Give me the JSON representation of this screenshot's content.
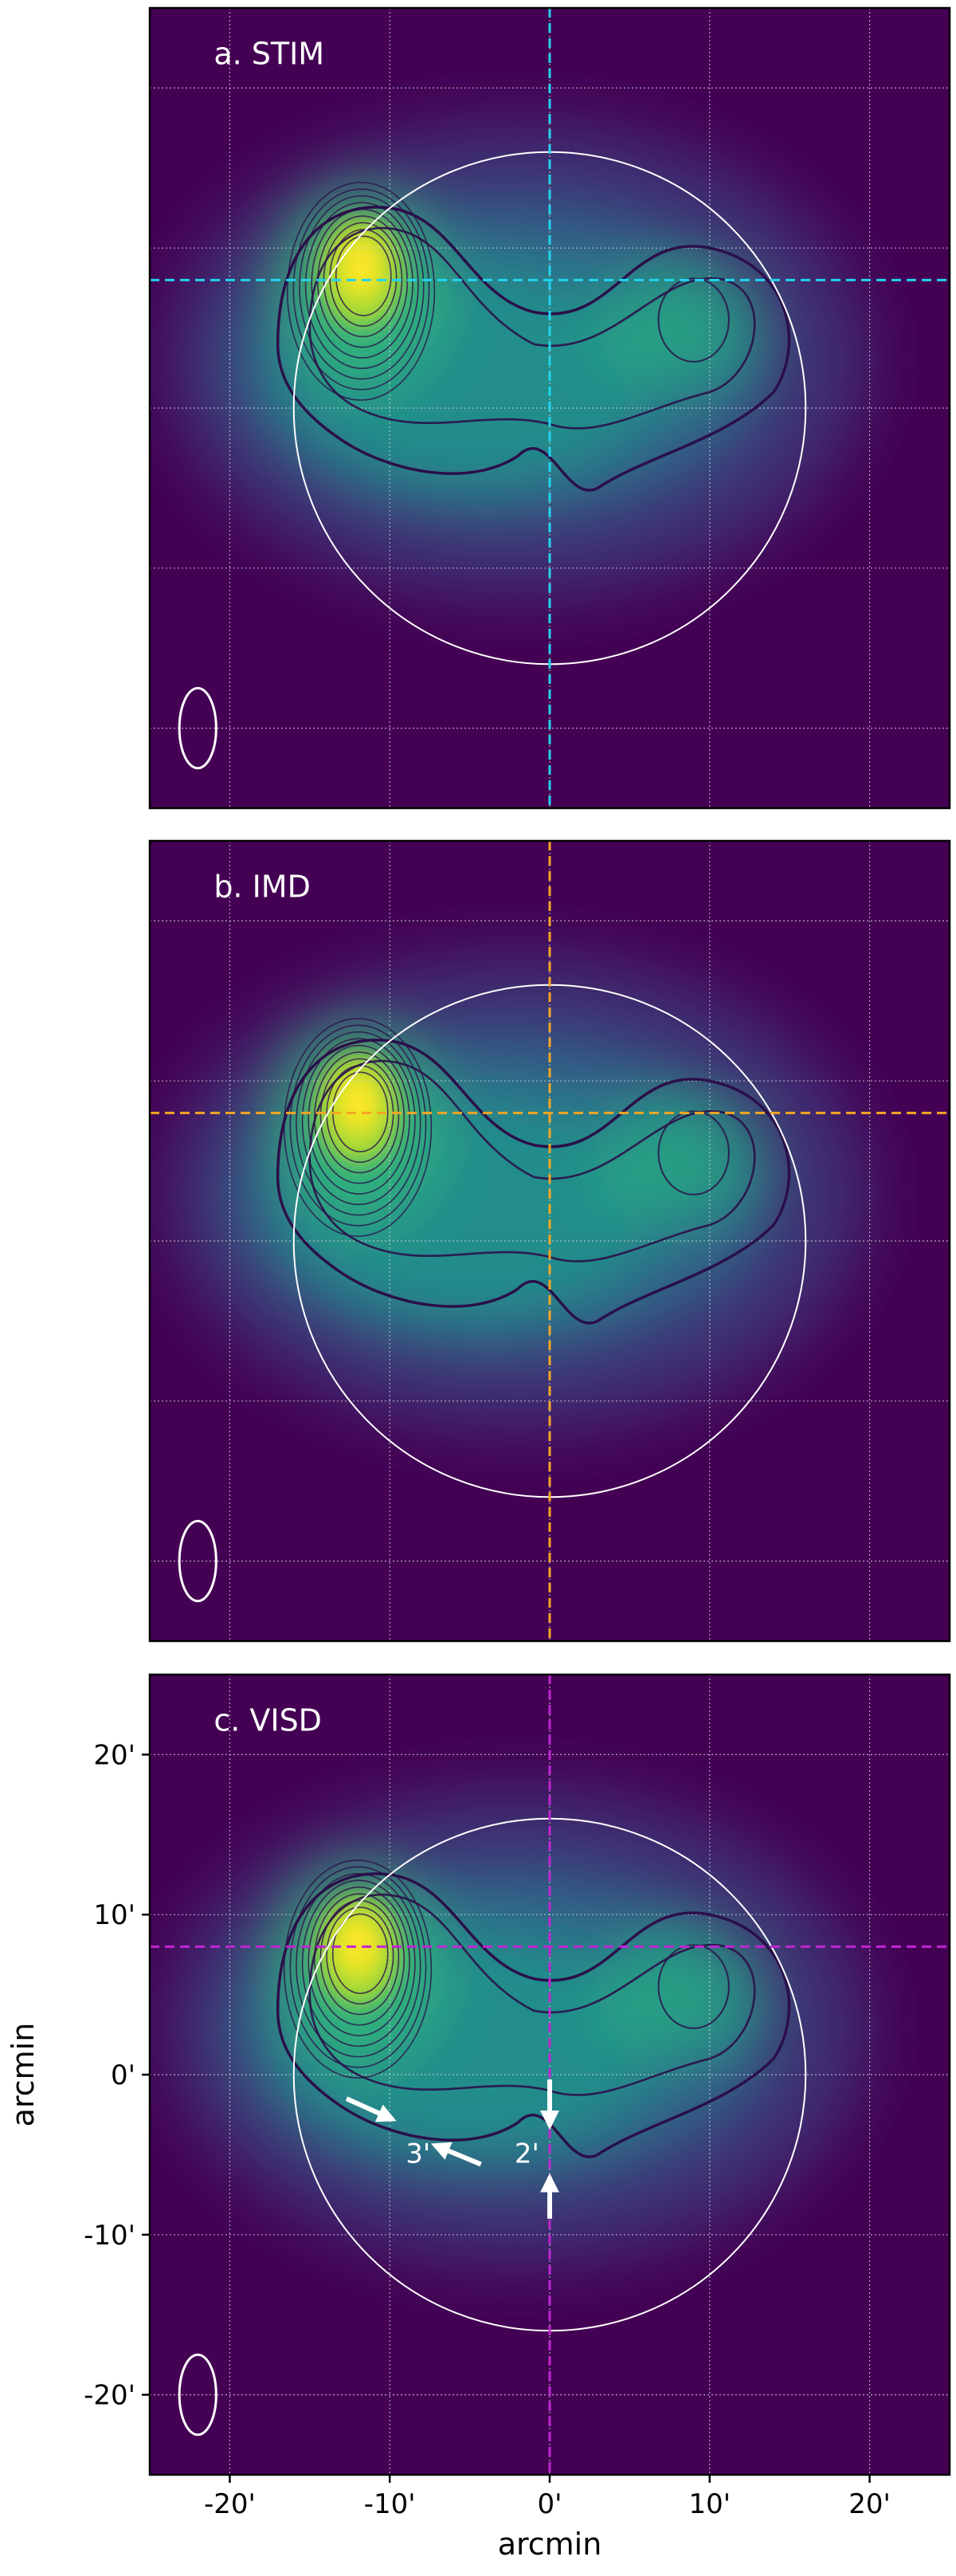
{
  "figure": {
    "colors": {
      "background": "#440154",
      "mid": "#21918c",
      "peak": "#fde725",
      "contour": "#2a0f4a",
      "grid": "#d8d8d8",
      "circle": "#ffffff"
    }
  },
  "chart_data": [
    {
      "type": "heatmap",
      "title": "a. STIM",
      "crosshair_color": "#22d3ee",
      "crosshair": {
        "x": 0,
        "y": 8
      },
      "xlim": [
        -25,
        25
      ],
      "ylim": [
        -25,
        25
      ],
      "grid": true,
      "circle_radius": 16,
      "beam": {
        "x": -22,
        "y": -20,
        "major": 5,
        "minor": 2.5
      },
      "peak": {
        "x": -11.8,
        "y": 8.5
      },
      "tick_labels_visible": false
    },
    {
      "type": "heatmap",
      "title": "b. IMD",
      "crosshair_color": "#f5a623",
      "crosshair": {
        "x": 0,
        "y": 8
      },
      "xlim": [
        -25,
        25
      ],
      "ylim": [
        -25,
        25
      ],
      "grid": true,
      "circle_radius": 16,
      "beam": {
        "x": -22,
        "y": -20,
        "major": 5,
        "minor": 2.5
      },
      "peak": {
        "x": -12,
        "y": 8.3
      },
      "tick_labels_visible": false
    },
    {
      "type": "heatmap",
      "title": "c. VISD",
      "crosshair_color": "#c026d3",
      "crosshair": {
        "x": 0,
        "y": 8
      },
      "xlim": [
        -25,
        25
      ],
      "ylim": [
        -25,
        25
      ],
      "grid": true,
      "circle_radius": 16,
      "beam": {
        "x": -22,
        "y": -20,
        "major": 5,
        "minor": 2.5
      },
      "peak": {
        "x": -12,
        "y": 7.8
      },
      "tick_labels_visible": true,
      "xticks": [
        -20,
        -10,
        0,
        10,
        20
      ],
      "xtick_labels": [
        "-20'",
        "-10'",
        "0'",
        "10'",
        "20'"
      ],
      "yticks": [
        20,
        10,
        0,
        -10,
        -20
      ],
      "ytick_labels": [
        "20'",
        "10'",
        "0'",
        "-10'",
        "-20'"
      ],
      "xlabel": "arcmin",
      "ylabel": "arcmin",
      "annotations": [
        {
          "text": "3'",
          "x": -9,
          "y": -5.5
        },
        {
          "text": "2'",
          "x": -2.2,
          "y": -5.5
        }
      ]
    }
  ]
}
